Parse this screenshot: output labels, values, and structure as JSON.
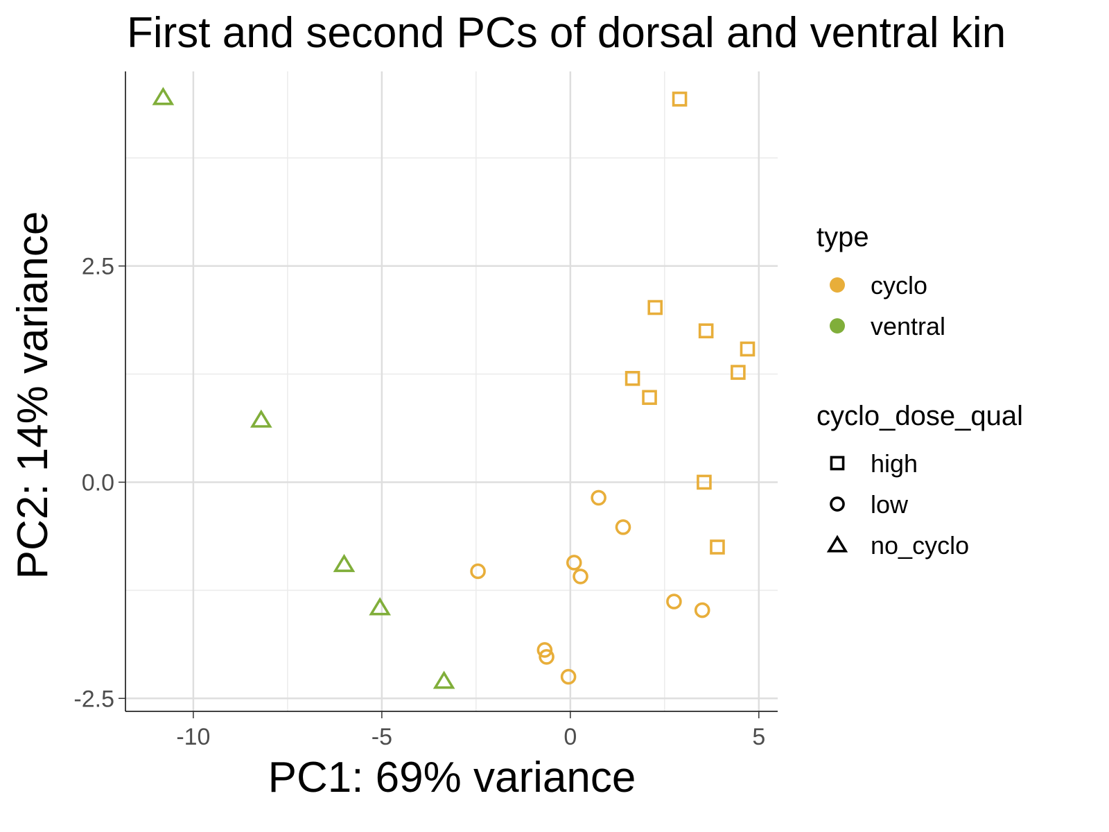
{
  "chart_data": {
    "type": "scatter",
    "title": "First and second PCs of dorsal and ventral kin",
    "xlabel": "PC1: 69% variance",
    "ylabel": "PC2: 14% variance",
    "xlim": [
      -11.8,
      5.5
    ],
    "ylim": [
      -2.65,
      4.75
    ],
    "x_ticks": [
      -10,
      -5,
      0,
      5
    ],
    "y_ticks": [
      -2.5,
      0.0,
      2.5
    ],
    "x_tick_labels": [
      "-10",
      "-5",
      "0",
      "5"
    ],
    "y_tick_labels": [
      "-2.5",
      "0.0",
      "2.5"
    ],
    "grid": true,
    "colors": {
      "cyclo": "#E8AE3A",
      "ventral": "#80AE3A"
    },
    "legend": {
      "position": "right",
      "type": {
        "title": "type",
        "items": [
          "cyclo",
          "ventral"
        ]
      },
      "shape": {
        "title": "cyclo_dose_qual",
        "items": [
          {
            "label": "high",
            "shape": "square"
          },
          {
            "label": "low",
            "shape": "circle"
          },
          {
            "label": "no_cyclo",
            "shape": "triangle"
          }
        ]
      }
    },
    "points": [
      {
        "x": -10.8,
        "y": 4.45,
        "type": "ventral",
        "dose": "no_cyclo"
      },
      {
        "x": -8.2,
        "y": 0.72,
        "type": "ventral",
        "dose": "no_cyclo"
      },
      {
        "x": -6.0,
        "y": -0.95,
        "type": "ventral",
        "dose": "no_cyclo"
      },
      {
        "x": -5.05,
        "y": -1.45,
        "type": "ventral",
        "dose": "no_cyclo"
      },
      {
        "x": -3.35,
        "y": -2.3,
        "type": "ventral",
        "dose": "no_cyclo"
      },
      {
        "x": 2.9,
        "y": 4.43,
        "type": "cyclo",
        "dose": "high"
      },
      {
        "x": 2.25,
        "y": 2.02,
        "type": "cyclo",
        "dose": "high"
      },
      {
        "x": 3.6,
        "y": 1.75,
        "type": "cyclo",
        "dose": "high"
      },
      {
        "x": 4.7,
        "y": 1.54,
        "type": "cyclo",
        "dose": "high"
      },
      {
        "x": 4.45,
        "y": 1.27,
        "type": "cyclo",
        "dose": "high"
      },
      {
        "x": 1.65,
        "y": 1.2,
        "type": "cyclo",
        "dose": "high"
      },
      {
        "x": 2.1,
        "y": 0.98,
        "type": "cyclo",
        "dose": "high"
      },
      {
        "x": 3.55,
        "y": 0.0,
        "type": "cyclo",
        "dose": "high"
      },
      {
        "x": 3.9,
        "y": -0.75,
        "type": "cyclo",
        "dose": "high"
      },
      {
        "x": 0.75,
        "y": -0.18,
        "type": "cyclo",
        "dose": "low"
      },
      {
        "x": 1.4,
        "y": -0.52,
        "type": "cyclo",
        "dose": "low"
      },
      {
        "x": -2.45,
        "y": -1.03,
        "type": "cyclo",
        "dose": "low"
      },
      {
        "x": 0.1,
        "y": -0.93,
        "type": "cyclo",
        "dose": "low"
      },
      {
        "x": 0.27,
        "y": -1.09,
        "type": "cyclo",
        "dose": "low"
      },
      {
        "x": 2.75,
        "y": -1.38,
        "type": "cyclo",
        "dose": "low"
      },
      {
        "x": 3.5,
        "y": -1.48,
        "type": "cyclo",
        "dose": "low"
      },
      {
        "x": -0.68,
        "y": -1.94,
        "type": "cyclo",
        "dose": "low"
      },
      {
        "x": -0.63,
        "y": -2.02,
        "type": "cyclo",
        "dose": "low"
      },
      {
        "x": -0.05,
        "y": -2.25,
        "type": "cyclo",
        "dose": "low"
      }
    ]
  }
}
